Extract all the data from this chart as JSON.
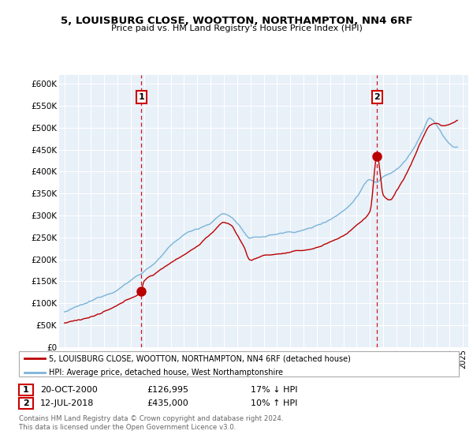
{
  "title": "5, LOUISBURG CLOSE, WOOTTON, NORTHAMPTON, NN4 6RF",
  "subtitle": "Price paid vs. HM Land Registry's House Price Index (HPI)",
  "ylim": [
    0,
    620000
  ],
  "yticks": [
    0,
    50000,
    100000,
    150000,
    200000,
    250000,
    300000,
    350000,
    400000,
    450000,
    500000,
    550000,
    600000
  ],
  "ytick_labels": [
    "£0",
    "£50K",
    "£100K",
    "£150K",
    "£200K",
    "£250K",
    "£300K",
    "£350K",
    "£400K",
    "£450K",
    "£500K",
    "£550K",
    "£600K"
  ],
  "xlim_start": 1994.6,
  "xlim_end": 2025.4,
  "hpi_color": "#7ab4d8",
  "price_color": "#bb0000",
  "vline_color": "#cc0000",
  "chart_bg": "#e8f0f8",
  "background_color": "#ffffff",
  "sale1_year": 2000.8,
  "sale1_price": 126995,
  "sale2_year": 2018.54,
  "sale2_price": 435000,
  "legend_line1": "5, LOUISBURG CLOSE, WOOTTON, NORTHAMPTON, NN4 6RF (detached house)",
  "legend_line2": "HPI: Average price, detached house, West Northamptonshire",
  "annotation1_label": "1",
  "annotation1_date": "20-OCT-2000",
  "annotation1_price": "£126,995",
  "annotation1_hpi": "17% ↓ HPI",
  "annotation2_label": "2",
  "annotation2_date": "12-JUL-2018",
  "annotation2_price": "£435,000",
  "annotation2_hpi": "10% ↑ HPI",
  "footer": "Contains HM Land Registry data © Crown copyright and database right 2024.\nThis data is licensed under the Open Government Licence v3.0."
}
